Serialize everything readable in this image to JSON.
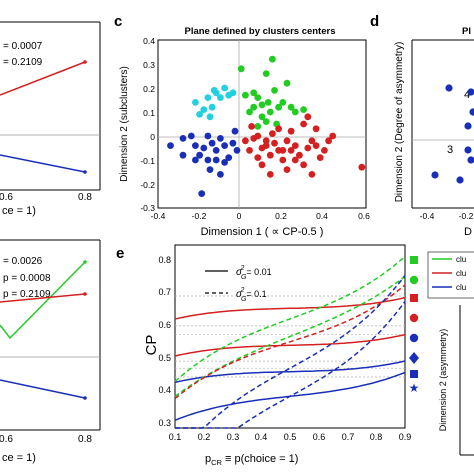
{
  "panel_a_partial": {
    "stats": [
      "= 0.0007",
      "= 0.2109"
    ],
    "xticks": [
      "0.6",
      "0.8"
    ],
    "xlabel_fragment": "ce = 1)"
  },
  "panel_b_partial": {
    "stats": [
      "= 0.0026",
      "p = 0.0008",
      "p = 0.2109"
    ],
    "xticks": [
      "0.6",
      "0.8"
    ],
    "xlabel_fragment": "ce = 1)"
  },
  "panel_c": {
    "letter": "c",
    "title": "Plane defined by clusters centers",
    "xlabel": "Dimension 1 ( ∝ CP-0.5 )",
    "ylabel": "Dimension 2 (subclusters)",
    "xticks": [
      "-0.4",
      "-0.2",
      "0",
      "0.2",
      "0.4",
      "0.6"
    ],
    "yticks": [
      "0.4",
      "0.3",
      "0.2",
      "0.1",
      "0",
      "-0.1",
      "-0.2",
      "-0.3"
    ]
  },
  "panel_d": {
    "letter": "d",
    "title_fragment": "Pl",
    "ylabel": "Dimension 2 (Degree of asymmetry)",
    "xticks": [
      "-0.4",
      "-0.2"
    ],
    "annotations": [
      "4",
      "3"
    ],
    "xlabel_fragment": "D"
  },
  "panel_e": {
    "letter": "e",
    "ylabel": "CP",
    "xlabel": "p",
    "xlabel_sub": "CR",
    "xlabel_rest": " ≡ p(choice = 1)",
    "xticks": [
      "0.1",
      "0.2",
      "0.3",
      "0.4",
      "0.5",
      "0.6",
      "0.7",
      "0.8",
      "0.9"
    ],
    "yticks": [
      "0.8",
      "0.7",
      "0.6",
      "0.5",
      "0.4",
      "0.3"
    ],
    "legend": [
      {
        "style": "solid",
        "label": "= 0.01"
      },
      {
        "style": "dashed",
        "label": "= 0.1"
      }
    ],
    "sigma_symbol": "σ",
    "sigma_sub": "G",
    "sigma_sup": "2"
  },
  "right_partial": {
    "legend": [
      "clu",
      "clu",
      "clu"
    ],
    "ylabel": "Dimension 2 (asymmetry)"
  },
  "colors": {
    "red": "#d42020",
    "green": "#22cc22",
    "blue": "#1a2fb8",
    "cyan": "#22d0e0"
  }
}
